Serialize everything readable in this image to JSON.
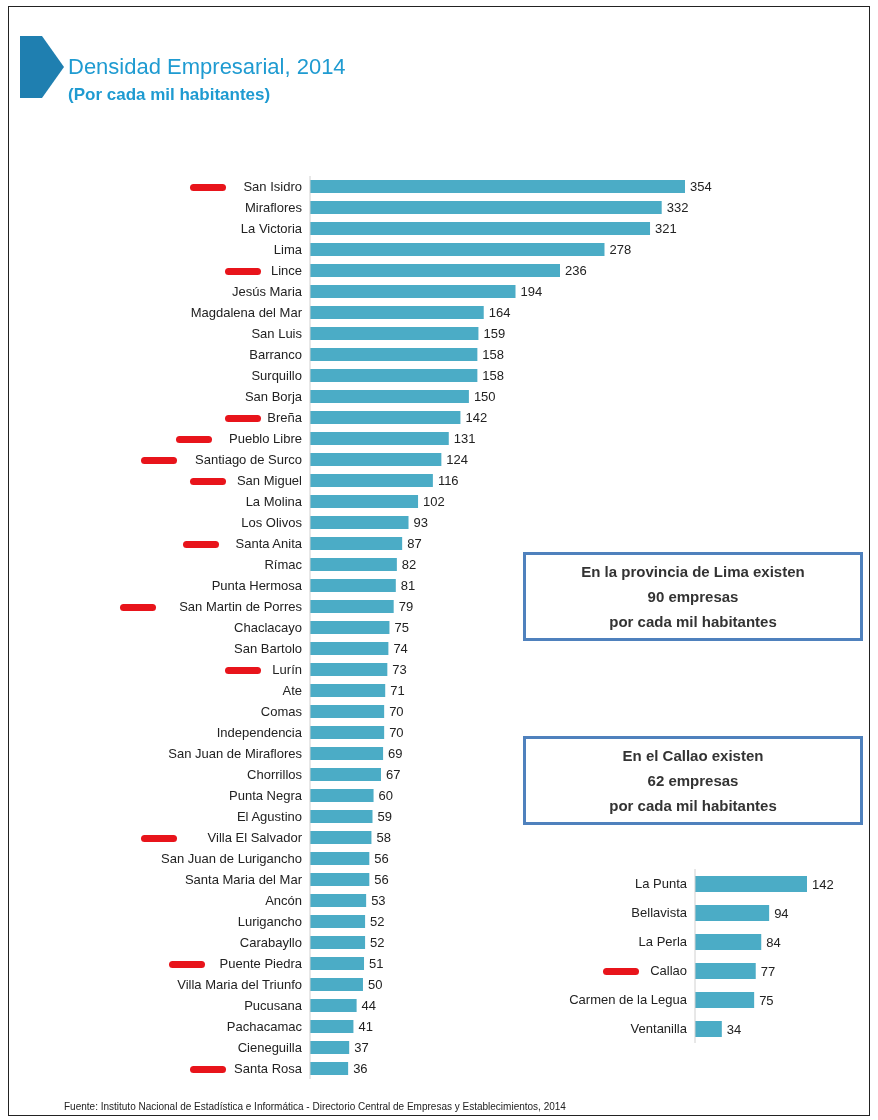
{
  "chart_data": [
    {
      "type": "bar",
      "orientation": "horizontal",
      "title": "Densidad Empresarial, 2014",
      "subtitle": "(Por cada mil habitantes)",
      "categories": [
        "San Isidro",
        "Miraflores",
        "La Victoria",
        "Lima",
        "Lince",
        "Jesús Maria",
        "Magdalena del Mar",
        "San Luis",
        "Barranco",
        "Surquillo",
        "San Borja",
        "Breña",
        "Pueblo Libre",
        "Santiago de Surco",
        "San Miguel",
        "La Molina",
        "Los Olivos",
        "Santa Anita",
        "Rímac",
        "Punta Hermosa",
        "San Martin de Porres",
        "Chaclacayo",
        "San Bartolo",
        "Lurín",
        "Ate",
        "Comas",
        "Independencia",
        "San Juan de Miraflores",
        "Chorrillos",
        "Punta Negra",
        "El Agustino",
        "Villa El Salvador",
        "San Juan de Lurigancho",
        "Santa Maria del Mar",
        "Ancón",
        "Lurigancho",
        "Carabayllo",
        "Puente Piedra",
        "Villa Maria del Triunfo",
        "Pucusana",
        "Pachacamac",
        "Cieneguilla",
        "Santa Rosa"
      ],
      "values": [
        354,
        332,
        321,
        278,
        236,
        194,
        164,
        159,
        158,
        158,
        150,
        142,
        131,
        124,
        116,
        102,
        93,
        87,
        82,
        81,
        79,
        75,
        74,
        73,
        71,
        70,
        70,
        69,
        67,
        60,
        59,
        58,
        56,
        56,
        53,
        52,
        52,
        51,
        50,
        44,
        41,
        37,
        36
      ],
      "color": "#4bacc6",
      "data_labels": true,
      "grid": false,
      "legend": false,
      "annotations": [
        "En la provincia de Lima existen\n90 empresas\npor cada mil habitantes",
        "Fuente: Instituto Nacional de Estadística e Informática - Directorio Central de Empresas y Establecimientos, 2014"
      ]
    },
    {
      "type": "bar",
      "orientation": "horizontal",
      "categories": [
        "La Punta",
        "Bellavista",
        "La Perla",
        "Callao",
        "Carmen de la Legua",
        "Ventanilla"
      ],
      "values": [
        142,
        94,
        84,
        77,
        75,
        34
      ],
      "color": "#4bacc6",
      "data_labels": true,
      "grid": false,
      "legend": false,
      "annotations": [
        "En el Callao existen\n62 empresas\npor cada mil habitantes"
      ]
    }
  ]
}
